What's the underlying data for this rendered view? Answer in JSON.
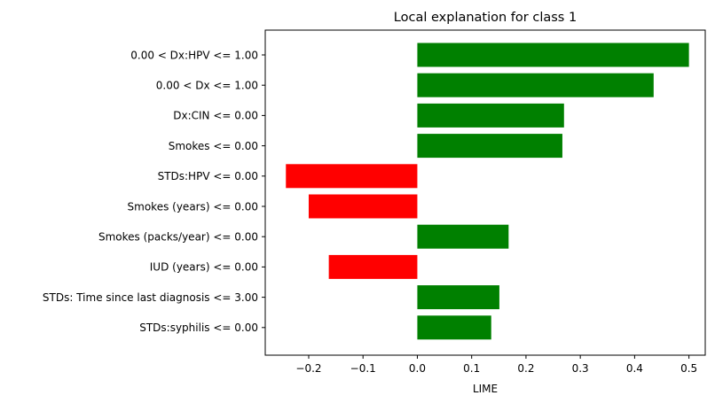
{
  "chart_data": {
    "type": "bar",
    "orientation": "horizontal",
    "title": "Local explanation for class 1",
    "xlabel": "LIME",
    "ylabel": "",
    "xlim": [
      -0.28,
      0.53
    ],
    "xticks": [
      -0.2,
      -0.1,
      0.0,
      0.1,
      0.2,
      0.3,
      0.4,
      0.5
    ],
    "xtick_labels": [
      "−0.2",
      "−0.1",
      "0.0",
      "0.1",
      "0.2",
      "0.3",
      "0.4",
      "0.5"
    ],
    "grid": false,
    "colors": {
      "positive": "#008000",
      "negative": "#ff0000"
    },
    "categories": [
      "0.00 < Dx:HPV <= 1.00",
      "0.00 < Dx <= 1.00",
      "Dx:CIN <= 0.00",
      "Smokes <= 0.00",
      "STDs:HPV <= 0.00",
      "Smokes (years) <= 0.00",
      "Smokes (packs/year) <= 0.00",
      "IUD (years) <= 0.00",
      "STDs: Time since last diagnosis <= 3.00",
      "STDs:syphilis <= 0.00"
    ],
    "values": [
      0.5,
      0.435,
      0.27,
      0.267,
      -0.242,
      -0.2,
      0.168,
      -0.163,
      0.151,
      0.136
    ]
  }
}
